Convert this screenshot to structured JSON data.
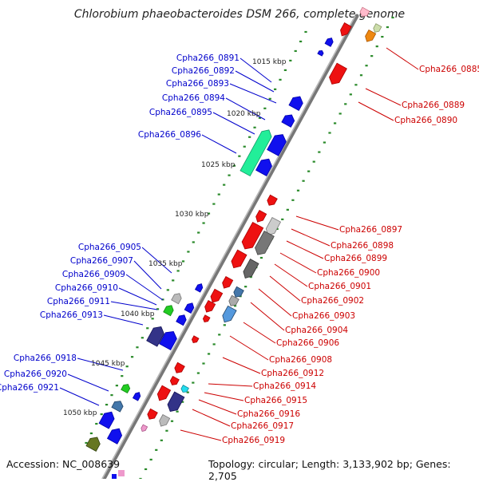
{
  "title": "Chlorobium phaeobacteroides DSM 266, complete genome",
  "accession": "Accession: NC_008639",
  "summary": "Topology: circular; Length: 3,133,902 bp; Genes: 2,705",
  "colors": {
    "left_label": "#0000cc",
    "right_label": "#cc0000",
    "backbone": "#888888",
    "ticks": "#2a8a2a"
  },
  "kbp_labels": [
    "1015 kbp",
    "1020 kbp",
    "1025 kbp",
    "1030 kbp",
    "1035 kbp",
    "1040 kbp",
    "1045 kbp",
    "1050 kbp"
  ],
  "left_genes": [
    "Cpha266_0891",
    "Cpha266_0892",
    "Cpha266_0893",
    "Cpha266_0894",
    "Cpha266_0895",
    "Cpha266_0896",
    "Cpha266_0905",
    "Cpha266_0907",
    "Cpha266_0909",
    "Cpha266_0910",
    "Cpha266_0911",
    "Cpha266_0913",
    "Cpha266_0918",
    "Cpha266_0920",
    "Cpha266_0921"
  ],
  "right_genes": [
    "Cpha266_0885",
    "Cpha266_0889",
    "Cpha266_0890",
    "Cpha266_0897",
    "Cpha266_0898",
    "Cpha266_0899",
    "Cpha266_0900",
    "Cpha266_0901",
    "Cpha266_0902",
    "Cpha266_0903",
    "Cpha266_0904",
    "Cpha266_0906",
    "Cpha266_0908",
    "Cpha266_0912",
    "Cpha266_0914",
    "Cpha266_0915",
    "Cpha266_0916",
    "Cpha266_0917",
    "Cpha266_0919"
  ]
}
